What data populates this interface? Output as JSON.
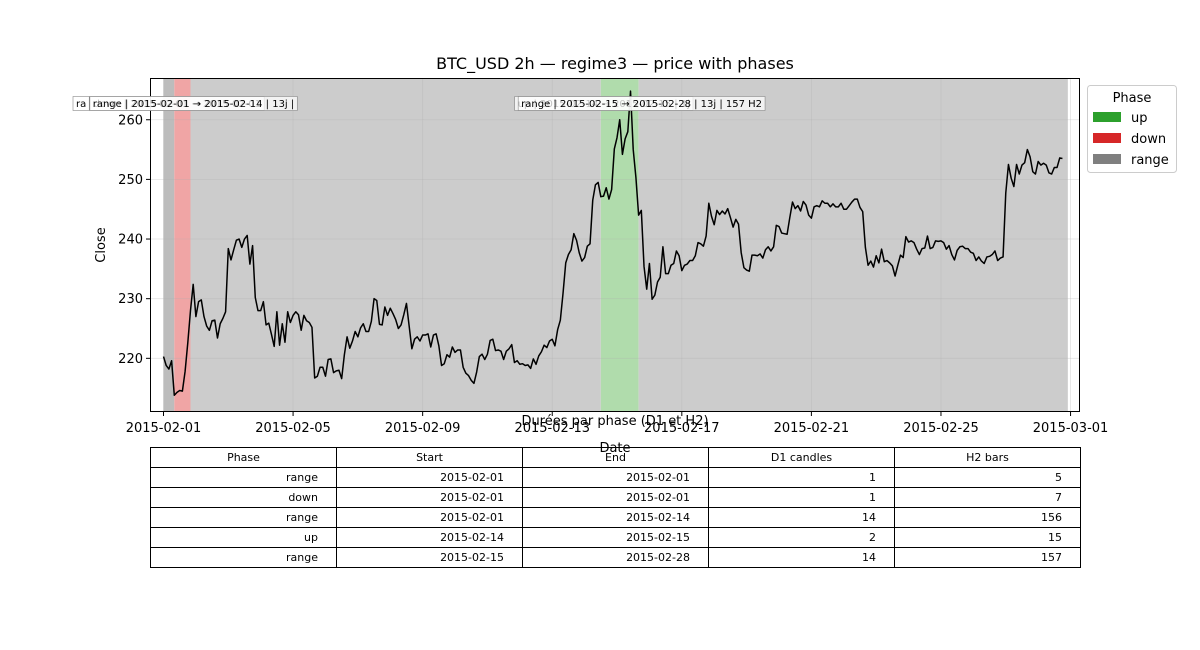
{
  "chart_data": {
    "type": "line",
    "title": "BTC_USD 2h — regime3 — price with phases",
    "xlabel": "Date",
    "ylabel": "Close",
    "xlim": [
      "2015-01-31T14:00",
      "2015-03-01T07:00"
    ],
    "ylim": [
      211,
      267
    ],
    "grid": true,
    "x_ticks": [
      "2015-02-01",
      "2015-02-05",
      "2015-02-09",
      "2015-02-13",
      "2015-02-17",
      "2015-02-21",
      "2015-02-25",
      "2015-03-01"
    ],
    "y_ticks": [
      220,
      230,
      240,
      250,
      260
    ],
    "legend": {
      "title": "Phase",
      "position": "upper right outside",
      "entries": [
        {
          "label": "up",
          "color": "#2ca02c"
        },
        {
          "label": "down",
          "color": "#d62728"
        },
        {
          "label": "range",
          "color": "#7f7f7f"
        }
      ]
    },
    "phases": [
      {
        "phase": "range",
        "start": "2015-02-01T00:00",
        "end": "2015-02-01T08:00",
        "color": "#bcbcbc",
        "label": "ra"
      },
      {
        "phase": "down",
        "start": "2015-02-01T08:00",
        "end": "2015-02-01T20:00",
        "color": "#f0a5a5",
        "label": "down | 2015-02-01 → 2015-02-01"
      },
      {
        "phase": "range",
        "start": "2015-02-01T20:00",
        "end": "2015-02-14T12:00",
        "color": "#cccccc",
        "label": "range | 2015-02-01 → 2015-02-14 | 13j |"
      },
      {
        "phase": "up",
        "start": "2015-02-14T12:00",
        "end": "2015-02-15T16:00",
        "color": "#b0dcac",
        "label": "up | 2015-02-14 → 2015-02-15 | 1j"
      },
      {
        "phase": "range",
        "start": "2015-02-15T16:00",
        "end": "2015-02-28T22:00",
        "color": "#cccccc",
        "label": "range | 2015-02-15 → 2015-02-28 | 13j | 157 H2"
      }
    ],
    "series": [
      {
        "color": "#000000",
        "x_start": "2015-02-01T00:00",
        "x_step_hours": 2,
        "values": [
          220.3,
          218.8,
          218.2,
          219.6,
          213.8,
          214.3,
          214.6,
          214.5,
          217.8,
          222.6,
          228.0,
          232.4,
          227.0,
          229.5,
          229.8,
          227.0,
          225.4,
          224.7,
          226.3,
          226.4,
          223.4,
          225.8,
          226.7,
          227.8,
          238.4,
          236.5,
          238.2,
          239.8,
          240.0,
          238.6,
          240.0,
          240.6,
          235.8,
          238.9,
          230.2,
          228.0,
          228.0,
          229.5,
          225.6,
          225.9,
          224.0,
          222.0,
          227.8,
          222.2,
          225.8,
          222.7,
          227.8,
          226.0,
          227.2,
          227.8,
          227.3,
          224.7,
          227.2,
          226.3,
          226.0,
          225.2,
          216.7,
          217.0,
          218.5,
          218.5,
          217.0,
          219.8,
          219.9,
          217.6,
          217.9,
          218.0,
          216.6,
          220.6,
          223.6,
          221.7,
          222.9,
          224.5,
          223.6,
          225.1,
          225.8,
          224.5,
          224.5,
          226.2,
          230.0,
          229.7,
          225.7,
          225.6,
          228.6,
          227.2,
          228.4,
          227.5,
          226.5,
          225.0,
          225.6,
          227.3,
          229.2,
          225.4,
          221.6,
          223.2,
          223.6,
          222.9,
          223.9,
          223.9,
          224.1,
          221.9,
          223.9,
          224.1,
          222.1,
          218.8,
          219.1,
          220.6,
          220.2,
          221.9,
          221.0,
          221.4,
          221.4,
          218.5,
          217.5,
          217.1,
          216.3,
          215.8,
          217.7,
          220.3,
          220.7,
          219.8,
          220.7,
          223.0,
          223.2,
          221.3,
          221.4,
          221.2,
          219.8,
          221.2,
          221.6,
          222.3,
          219.3,
          219.6,
          219.0,
          219.1,
          218.8,
          218.9,
          218.3,
          219.9,
          219.0,
          220.4,
          221.1,
          222.2,
          221.8,
          222.9,
          223.2,
          222.1,
          224.8,
          226.4,
          230.9,
          236.0,
          237.4,
          238.2,
          240.9,
          239.8,
          237.7,
          236.3,
          236.9,
          238.8,
          239.2,
          246.5,
          249.1,
          249.5,
          247.1,
          247.2,
          248.6,
          246.7,
          248.3,
          255.1,
          257.0,
          260.0,
          254.2,
          256.8,
          258.0,
          264.8,
          255.0,
          250.3,
          244.0,
          244.8,
          235.4,
          231.6,
          235.9,
          229.9,
          230.6,
          232.8,
          233.6,
          238.7,
          234.2,
          234.2,
          235.6,
          235.9,
          238.0,
          237.2,
          234.7,
          235.6,
          235.8,
          236.4,
          236.4,
          237.2,
          239.4,
          239.2,
          238.8,
          240.5,
          246.0,
          243.8,
          242.4,
          244.8,
          244.1,
          244.7,
          244.2,
          245.1,
          243.6,
          242.0,
          243.3,
          242.5,
          237.7,
          235.2,
          234.8,
          234.6,
          237.3,
          237.3,
          237.2,
          237.5,
          236.8,
          238.2,
          238.7,
          238.0,
          238.7,
          242.3,
          242.1,
          241.0,
          240.9,
          240.8,
          243.6,
          246.2,
          245.1,
          245.6,
          244.7,
          246.3,
          245.7,
          244.0,
          243.5,
          245.4,
          245.6,
          245.4,
          246.4,
          246.0,
          246.0,
          245.4,
          245.9,
          245.4,
          245.4,
          246.0,
          245.0,
          245.0,
          245.6,
          246.2,
          246.7,
          246.7,
          245.3,
          244.6,
          238.6,
          235.6,
          236.3,
          235.3,
          237.2,
          236.0,
          238.3,
          236.2,
          236.4,
          236.0,
          235.5,
          233.8,
          235.6,
          237.3,
          236.9,
          240.4,
          239.5,
          239.7,
          239.4,
          238.3,
          237.4,
          238.4,
          238.5,
          240.5,
          238.4,
          238.6,
          239.7,
          239.6,
          239.7,
          239.4,
          238.3,
          238.9,
          237.4,
          236.5,
          238.1,
          238.7,
          238.8,
          238.4,
          238.4,
          237.8,
          237.6,
          236.4,
          237.0,
          236.3,
          235.9,
          237.0,
          237.1,
          237.4,
          238.0,
          236.4,
          236.8,
          237.0,
          247.7,
          252.5,
          250.2,
          248.8,
          252.5,
          250.9,
          252.4,
          252.8,
          255.0,
          253.8,
          251.3,
          250.9,
          253.0,
          252.4,
          252.7,
          252.4,
          251.1,
          250.9,
          252.0,
          252.0,
          253.6,
          253.5
        ]
      }
    ],
    "table": {
      "title": "Durées par phase (D1 et H2)",
      "columns": [
        "Phase",
        "Start",
        "End",
        "D1 candles",
        "H2 bars"
      ],
      "rows": [
        [
          "range",
          "2015-02-01",
          "2015-02-01",
          "1",
          "5"
        ],
        [
          "down",
          "2015-02-01",
          "2015-02-01",
          "1",
          "7"
        ],
        [
          "range",
          "2015-02-01",
          "2015-02-14",
          "14",
          "156"
        ],
        [
          "up",
          "2015-02-14",
          "2015-02-15",
          "2",
          "15"
        ],
        [
          "range",
          "2015-02-15",
          "2015-02-28",
          "14",
          "157"
        ]
      ]
    }
  }
}
